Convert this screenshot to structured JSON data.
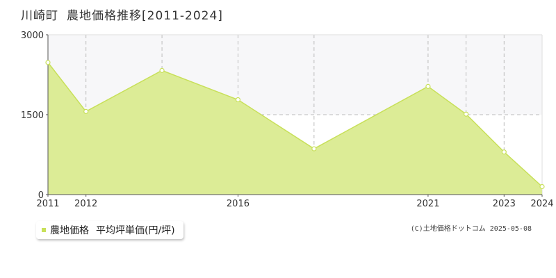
{
  "header": {
    "location": "川崎町",
    "title": "農地価格推移[2011-2024]"
  },
  "legend": {
    "series_label": "農地価格",
    "unit_label": "平均坪単価(円/坪)"
  },
  "credit": "(C)土地価格ドットコム 2025-05-08",
  "colors": {
    "fill": "#dcec96",
    "line": "#c8e05a",
    "grid": "#bbbbbb",
    "band": "#f7f7f9"
  },
  "chart_data": {
    "type": "area",
    "x": [
      2011,
      2012,
      2014,
      2016,
      2018,
      2021,
      2022,
      2023,
      2024
    ],
    "series": [
      {
        "values": [
          2480,
          1560,
          2330,
          1780,
          860,
          2030,
          1510,
          800,
          150
        ]
      }
    ],
    "xtick_labels": [
      "2011",
      "2012",
      "2016",
      "2021",
      "2023",
      "2024"
    ],
    "ytick_labels": [
      "0",
      "1500",
      "3000"
    ],
    "xlim": [
      2011,
      2024
    ],
    "ylim": [
      0,
      3000
    ],
    "grid": true
  }
}
